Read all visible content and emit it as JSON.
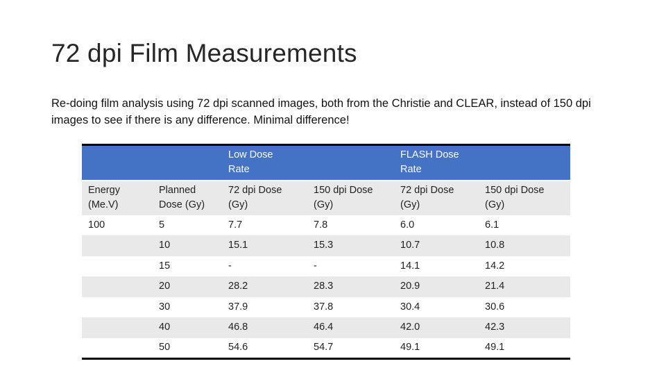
{
  "title": "72 dpi Film Measurements",
  "body": "Re-doing film analysis using 72 dpi scanned images, both from the Christie and CLEAR, instead of 150 dpi images to see if there is any difference. Minimal difference!",
  "table": {
    "group_header": [
      null,
      null,
      "Low Dose Rate",
      null,
      "FLASH Dose Rate",
      null
    ],
    "columns": [
      "Energy (Me.V)",
      "Planned Dose (Gy)",
      "72 dpi Dose (Gy)",
      "150 dpi Dose (Gy)",
      "72 dpi Dose (Gy)",
      "150 dpi Dose (Gy)"
    ],
    "rows": [
      [
        "100",
        "5",
        "7.7",
        "7.8",
        "6.0",
        "6.1"
      ],
      [
        null,
        "10",
        "15.1",
        "15.3",
        "10.7",
        "10.8"
      ],
      [
        null,
        "15",
        "-",
        "-",
        "14.1",
        "14.2"
      ],
      [
        null,
        "20",
        "28.2",
        "28.3",
        "20.9",
        "21.4"
      ],
      [
        null,
        "30",
        "37.9",
        "37.8",
        "30.4",
        "30.6"
      ],
      [
        null,
        "40",
        "46.8",
        "46.4",
        "42.0",
        "42.3"
      ],
      [
        null,
        "50",
        "54.6",
        "54.7",
        "49.1",
        "49.1"
      ]
    ]
  }
}
